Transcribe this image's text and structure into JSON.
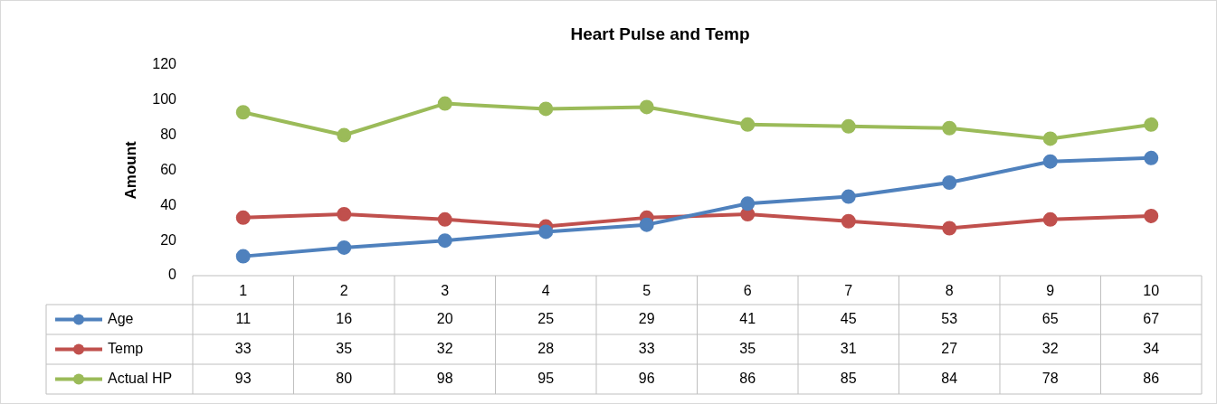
{
  "chart_data": {
    "type": "line",
    "title": "Heart Pulse and Temp",
    "ylabel": "Amount",
    "categories": [
      "1",
      "2",
      "3",
      "4",
      "5",
      "6",
      "7",
      "8",
      "9",
      "10"
    ],
    "series": [
      {
        "name": "Age",
        "color": "#4f81bd",
        "values": [
          11,
          16,
          20,
          25,
          29,
          41,
          45,
          53,
          65,
          67
        ]
      },
      {
        "name": "Temp",
        "color": "#c0504d",
        "values": [
          33,
          35,
          32,
          28,
          33,
          35,
          31,
          27,
          32,
          34
        ]
      },
      {
        "name": "Actual HP",
        "color": "#9bbb59",
        "values": [
          93,
          80,
          98,
          95,
          96,
          86,
          85,
          84,
          78,
          86
        ]
      }
    ],
    "ylim": [
      0,
      120
    ],
    "yticks": [
      0,
      20,
      40,
      60,
      80,
      100,
      120
    ],
    "grid": false,
    "legend": "bottom",
    "marker": "circle",
    "line_style": "solid",
    "data_labels": true
  }
}
